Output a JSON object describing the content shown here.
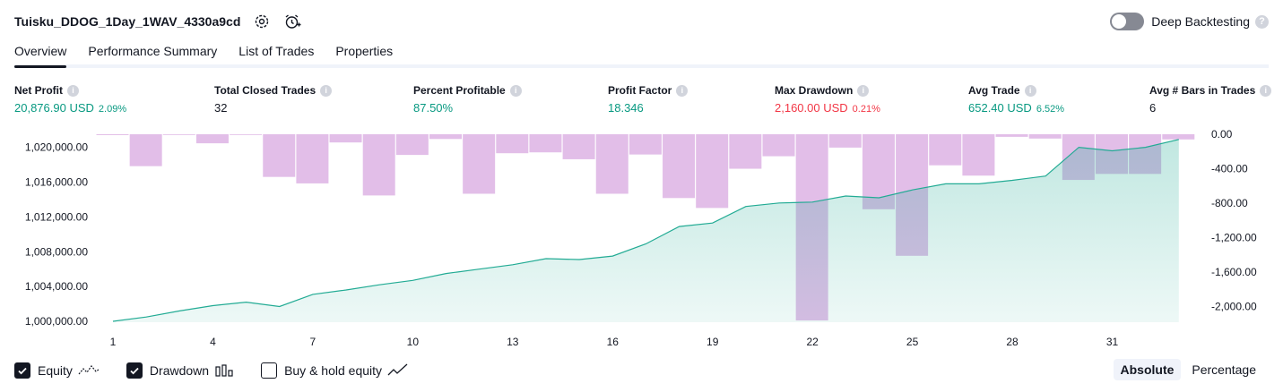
{
  "header": {
    "title": "Tuisku_DDOG_1Day_1WAV_4330a9cd",
    "settings_icon": "gear-icon",
    "alert_icon": "alarm-add-icon"
  },
  "deep_backtesting": {
    "label": "Deep Backtesting",
    "enabled": false,
    "help": "?"
  },
  "tabs": [
    {
      "label": "Overview",
      "active": true
    },
    {
      "label": "Performance Summary",
      "active": false
    },
    {
      "label": "List of Trades",
      "active": false
    },
    {
      "label": "Properties",
      "active": false
    }
  ],
  "metrics": [
    {
      "label": "Net Profit",
      "value": "20,876.90 USD",
      "pct": "2.09%",
      "color": "#089981"
    },
    {
      "label": "Total Closed Trades",
      "value": "32",
      "pct": "",
      "color": "#131722"
    },
    {
      "label": "Percent Profitable",
      "value": "87.50%",
      "pct": "",
      "color": "#089981"
    },
    {
      "label": "Profit Factor",
      "value": "18.346",
      "pct": "",
      "color": "#089981"
    },
    {
      "label": "Max Drawdown",
      "value": "2,160.00 USD",
      "pct": "0.21%",
      "color": "#f23645"
    },
    {
      "label": "Avg Trade",
      "value": "652.40 USD",
      "pct": "6.52%",
      "color": "#089981"
    },
    {
      "label": "Avg # Bars in Trades",
      "value": "6",
      "pct": "",
      "color": "#131722"
    }
  ],
  "chart_data": {
    "type": "area",
    "x_ticks": [
      "1",
      "4",
      "7",
      "10",
      "13",
      "16",
      "19",
      "22",
      "25",
      "28",
      "31"
    ],
    "left_axis": {
      "ticks": [
        "1,020,000.00",
        "1,016,000.00",
        "1,012,000.00",
        "1,008,000.00",
        "1,004,000.00",
        "1,000,000.00"
      ],
      "range": [
        999900,
        1021500
      ]
    },
    "right_axis": {
      "ticks": [
        "0.00",
        "-400.00",
        "-800.00",
        "-1,200.00",
        "-1,600.00",
        "-2,000.00"
      ],
      "range": [
        -2180,
        0
      ]
    },
    "series": [
      {
        "name": "Equity",
        "kind": "line-area",
        "color": "#22ab94",
        "x": [
          1,
          2,
          3,
          4,
          5,
          6,
          7,
          8,
          9,
          10,
          11,
          12,
          13,
          14,
          15,
          16,
          17,
          18,
          19,
          20,
          21,
          22,
          23,
          24,
          25,
          26,
          27,
          28,
          29,
          30,
          31,
          32,
          33
        ],
        "values": [
          1000000,
          1000500,
          1001200,
          1001800,
          1002200,
          1001700,
          1003100,
          1003600,
          1004200,
          1004700,
          1005500,
          1006000,
          1006500,
          1007200,
          1007100,
          1007500,
          1008900,
          1010900,
          1011300,
          1013200,
          1013600,
          1013700,
          1014400,
          1014200,
          1015100,
          1015800,
          1015800,
          1016200,
          1016700,
          1020000,
          1019600,
          1020000,
          1020900
        ]
      },
      {
        "name": "Drawdown",
        "kind": "bar",
        "color": "#ce93d8",
        "x": [
          1,
          2,
          3,
          4,
          5,
          6,
          7,
          8,
          9,
          10,
          11,
          12,
          13,
          14,
          15,
          16,
          17,
          18,
          19,
          20,
          21,
          22,
          23,
          24,
          25,
          26,
          27,
          28,
          29,
          30,
          31,
          32,
          33
        ],
        "values": [
          -10,
          -370,
          0,
          -105,
          0,
          -495,
          -570,
          -95,
          -710,
          -240,
          -55,
          -690,
          -220,
          -210,
          -290,
          -690,
          -235,
          -740,
          -855,
          -400,
          -255,
          -2160,
          -155,
          -870,
          -1410,
          -360,
          -480,
          -30,
          -50,
          -530,
          -460,
          -460,
          -60
        ]
      }
    ],
    "legend": [
      {
        "label": "Equity",
        "checked": true,
        "icon": "equity-line-icon"
      },
      {
        "label": "Drawdown",
        "checked": true,
        "icon": "drawdown-bars-icon"
      },
      {
        "label": "Buy & hold equity",
        "checked": false,
        "icon": "buy-hold-line-icon"
      }
    ],
    "grid": false
  },
  "modes": [
    {
      "label": "Absolute",
      "active": true
    },
    {
      "label": "Percentage",
      "active": false
    }
  ]
}
